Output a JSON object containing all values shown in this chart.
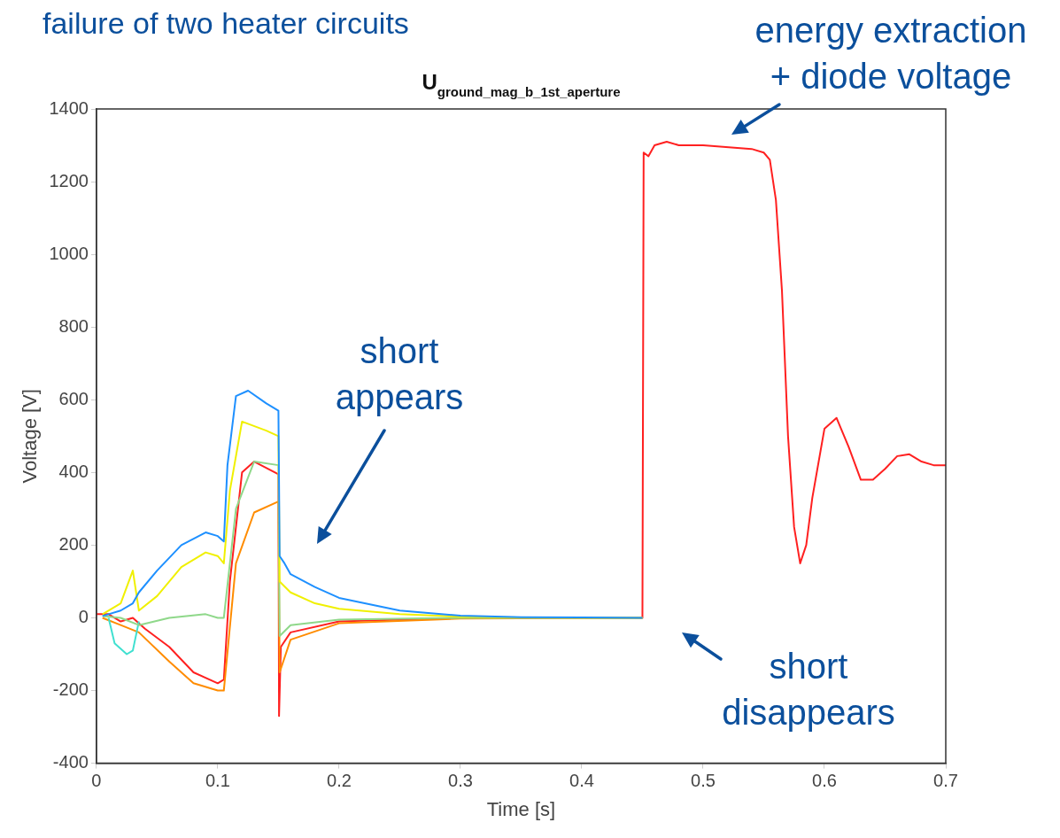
{
  "chart_data": {
    "type": "line",
    "title": "U$_{ground_mag_b_1st_aperture}$",
    "xlabel": "Time [s]",
    "ylabel": "Voltage [V]",
    "xlim": [
      0,
      0.7
    ],
    "xticks": [
      0,
      0.1,
      0.2,
      0.3,
      0.4,
      0.5,
      0.6,
      0.7
    ],
    "ylim": [
      -400,
      1400
    ],
    "yticks": [
      -400,
      -200,
      0,
      200,
      400,
      600,
      800,
      1000,
      1200,
      1400
    ],
    "grid": false,
    "legend": false,
    "marker": "none",
    "line_style": "solid",
    "series": [
      {
        "color": "#1e90ff",
        "x": [
          0.005,
          0.01,
          0.02,
          0.03,
          0.035,
          0.05,
          0.07,
          0.09,
          0.1,
          0.105,
          0.108,
          0.115,
          0.125,
          0.14,
          0.15,
          0.151,
          0.155,
          0.16,
          0.18,
          0.2,
          0.25,
          0.3,
          0.35,
          0.4,
          0.45
        ],
        "values": [
          5,
          10,
          20,
          40,
          70,
          130,
          200,
          235,
          225,
          210,
          420,
          610,
          625,
          590,
          570,
          170,
          150,
          120,
          85,
          55,
          20,
          6,
          2,
          1,
          0
        ]
      },
      {
        "color": "#f0f000",
        "x": [
          0.005,
          0.02,
          0.03,
          0.035,
          0.05,
          0.07,
          0.09,
          0.1,
          0.105,
          0.11,
          0.12,
          0.14,
          0.15,
          0.151,
          0.16,
          0.18,
          0.2,
          0.25,
          0.3,
          0.35,
          0.45
        ],
        "values": [
          10,
          40,
          130,
          20,
          60,
          140,
          180,
          170,
          150,
          350,
          540,
          515,
          500,
          100,
          70,
          40,
          25,
          10,
          3,
          1,
          0
        ]
      },
      {
        "color": "#8fd88a",
        "x": [
          0.005,
          0.02,
          0.035,
          0.06,
          0.09,
          0.1,
          0.105,
          0.115,
          0.13,
          0.15,
          0.151,
          0.16,
          0.2,
          0.3,
          0.45
        ],
        "values": [
          5,
          0,
          -20,
          0,
          10,
          0,
          0,
          300,
          430,
          420,
          -50,
          -20,
          -5,
          0,
          0
        ]
      },
      {
        "color": "#40e0d0",
        "x": [
          0.01,
          0.015,
          0.025,
          0.03,
          0.035
        ],
        "values": [
          0,
          -70,
          -100,
          -90,
          -10
        ]
      },
      {
        "color": "#ff8c00",
        "x": [
          0.005,
          0.02,
          0.035,
          0.06,
          0.08,
          0.1,
          0.105,
          0.115,
          0.13,
          0.15,
          0.151,
          0.16,
          0.2,
          0.3,
          0.45
        ],
        "values": [
          0,
          -20,
          -40,
          -120,
          -180,
          -200,
          -200,
          150,
          290,
          320,
          -150,
          -60,
          -15,
          -2,
          0
        ]
      },
      {
        "color": "#ff2020",
        "x": [
          0,
          0.01,
          0.02,
          0.03,
          0.04,
          0.06,
          0.08,
          0.1,
          0.105,
          0.11,
          0.12,
          0.13,
          0.15,
          0.1505,
          0.152,
          0.16,
          0.2,
          0.3,
          0.45,
          0.451,
          0.455,
          0.46,
          0.47,
          0.48,
          0.5,
          0.54,
          0.55,
          0.555,
          0.56,
          0.565,
          0.57,
          0.575,
          0.58,
          0.585,
          0.59,
          0.6,
          0.61,
          0.62,
          0.63,
          0.64,
          0.65,
          0.66,
          0.67,
          0.68,
          0.69,
          0.7
        ],
        "values": [
          10,
          10,
          -10,
          0,
          -30,
          -80,
          -150,
          -180,
          -170,
          100,
          400,
          430,
          395,
          -270,
          -80,
          -40,
          -10,
          0,
          0,
          1280,
          1270,
          1300,
          1310,
          1300,
          1300,
          1290,
          1280,
          1260,
          1150,
          900,
          500,
          250,
          150,
          200,
          330,
          520,
          550,
          470,
          380,
          380,
          410,
          445,
          450,
          430,
          420,
          420
        ]
      }
    ],
    "annotations": [
      "failure of two heater circuits",
      "short\nappears",
      "short\ndisappears",
      "energy extraction\n+ diode voltage"
    ]
  }
}
